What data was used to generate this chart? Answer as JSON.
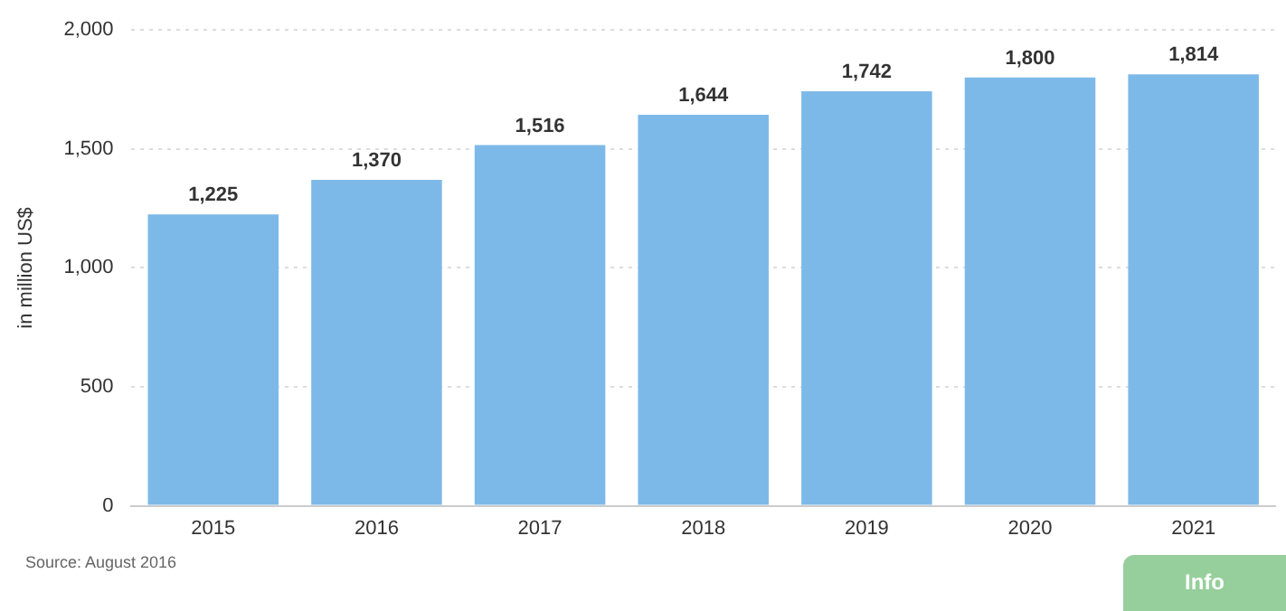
{
  "chart_data": {
    "type": "bar",
    "ylabel": "in million US$",
    "categories": [
      "2015",
      "2016",
      "2017",
      "2018",
      "2019",
      "2020",
      "2021"
    ],
    "values": [
      1225,
      1370,
      1516,
      1644,
      1742,
      1800,
      1814
    ],
    "value_labels": [
      "1,225",
      "1,370",
      "1,516",
      "1,644",
      "1,742",
      "1,800",
      "1,814"
    ],
    "color": "#7cb9e8",
    "ylim": [
      0,
      2000
    ],
    "yticks": [
      {
        "value": 0,
        "label": "0"
      },
      {
        "value": 500,
        "label": "500"
      },
      {
        "value": 1000,
        "label": "1,000"
      },
      {
        "value": 1500,
        "label": "1,500"
      },
      {
        "value": 2000,
        "label": "2,000"
      }
    ],
    "grid": "y",
    "annotations": [
      "Source: August 2016",
      "Info"
    ]
  }
}
